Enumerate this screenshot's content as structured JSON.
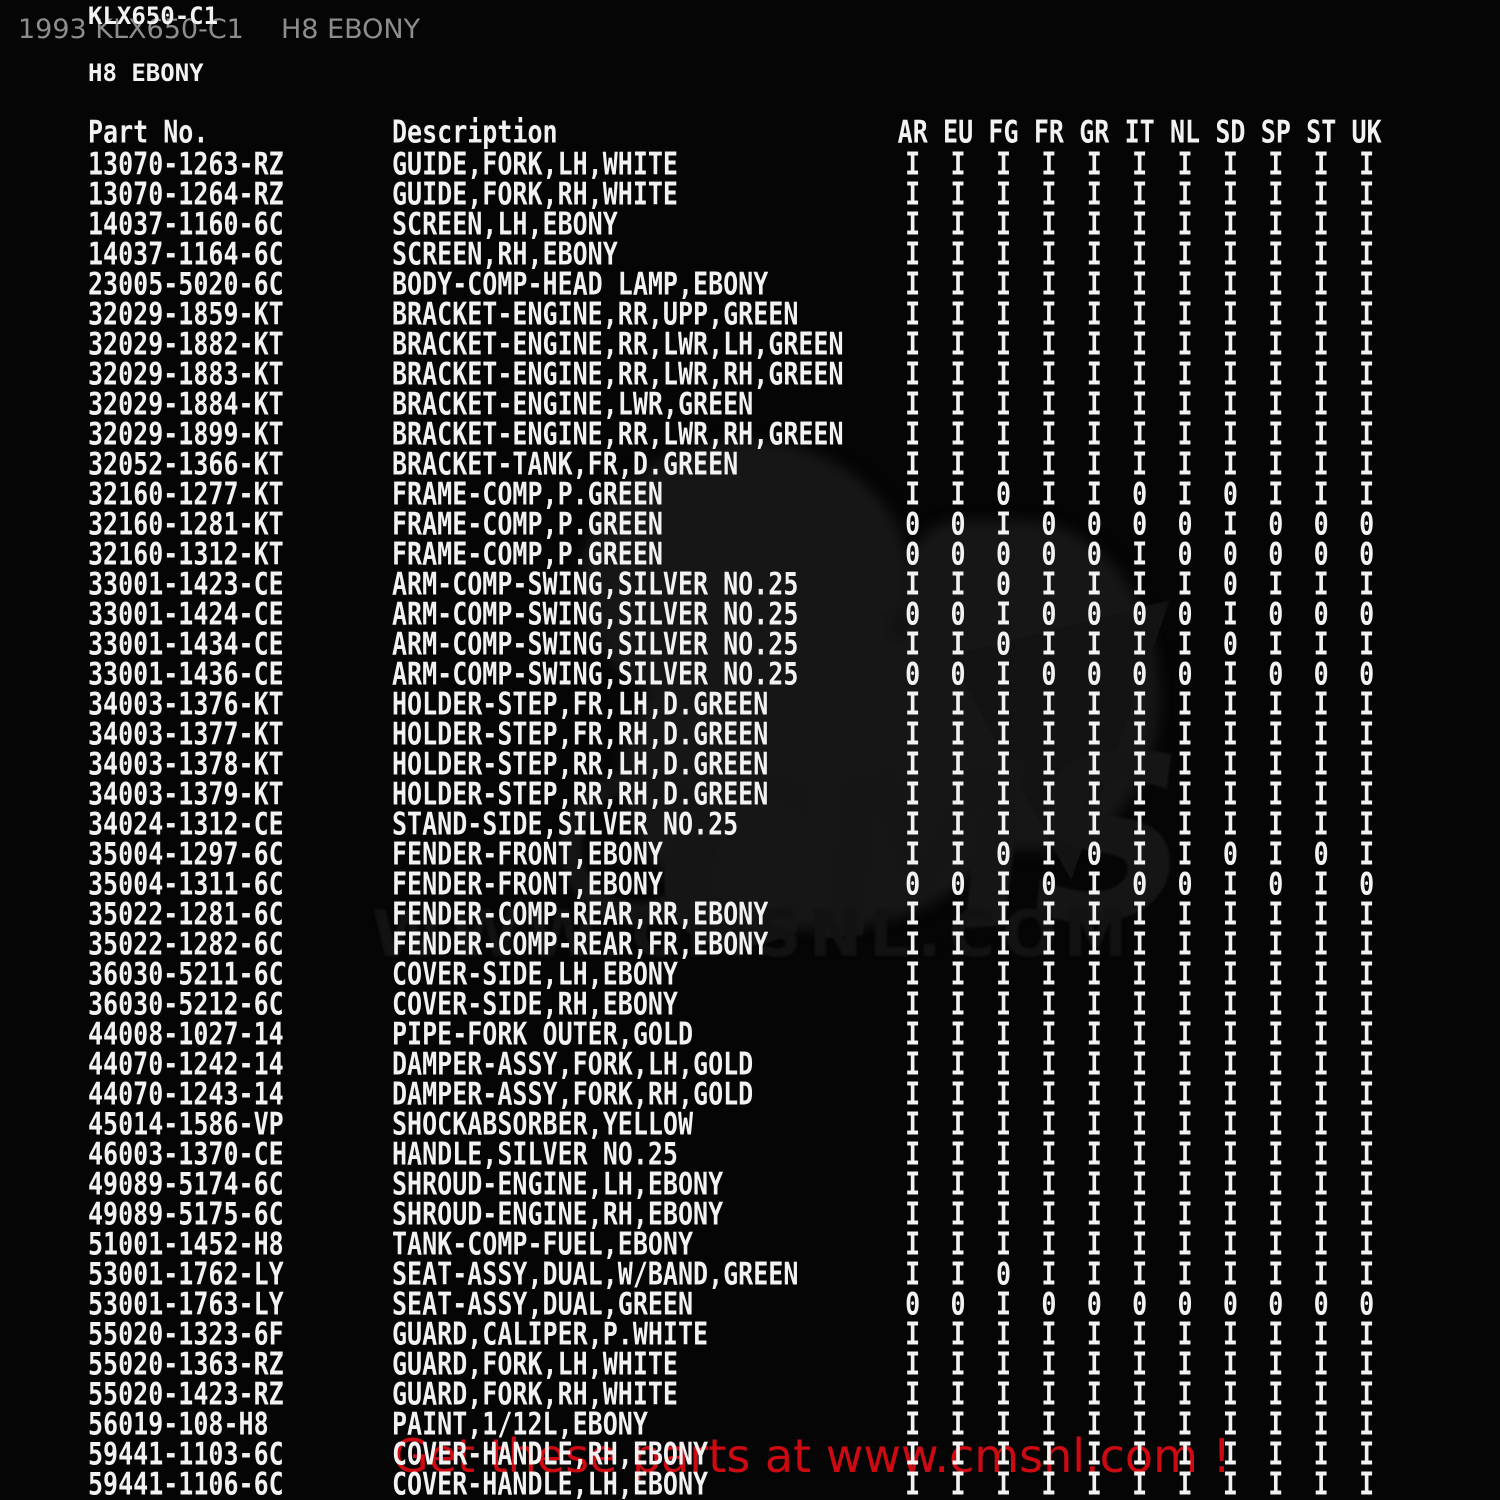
{
  "header": {
    "model_code": "KLX650-C1",
    "color_code": "H8 EBONY"
  },
  "watermarks": {
    "top_left": "1993 KLX650-C1",
    "top_right": "H8 EBONY",
    "logo": "CMS",
    "url": "WWW.CMSNL.COM"
  },
  "footer": {
    "promo": "Get these parts at www.cmsnl.com !"
  },
  "colors": {
    "background": "#050505",
    "text": "#f2f2f2",
    "caption_gray": "#8d8d8d",
    "promo_red": "#cd0a12",
    "watermark_gray": "#151515"
  },
  "table": {
    "columns": [
      "Part No.",
      "Description",
      "AR",
      "EU",
      "FG",
      "FR",
      "GR",
      "IT",
      "NL",
      "SD",
      "SP",
      "ST",
      "UK"
    ],
    "rows": [
      {
        "part": "13070-1263-RZ",
        "desc": "GUIDE,FORK,LH,WHITE",
        "flags": "IIIIIIIIIII"
      },
      {
        "part": "13070-1264-RZ",
        "desc": "GUIDE,FORK,RH,WHITE",
        "flags": "IIIIIIIIIII"
      },
      {
        "part": "14037-1160-6C",
        "desc": "SCREEN,LH,EBONY",
        "flags": "IIIIIIIIIII"
      },
      {
        "part": "14037-1164-6C",
        "desc": "SCREEN,RH,EBONY",
        "flags": "IIIIIIIIIII"
      },
      {
        "part": "23005-5020-6C",
        "desc": "BODY-COMP-HEAD LAMP,EBONY",
        "flags": "IIIIIIIIIII"
      },
      {
        "part": "32029-1859-KT",
        "desc": "BRACKET-ENGINE,RR,UPP,GREEN",
        "flags": "IIIIIIIIIII"
      },
      {
        "part": "32029-1882-KT",
        "desc": "BRACKET-ENGINE,RR,LWR,LH,GREEN",
        "flags": "IIIIIIIIIII"
      },
      {
        "part": "32029-1883-KT",
        "desc": "BRACKET-ENGINE,RR,LWR,RH,GREEN",
        "flags": "IIIIIIIIIII"
      },
      {
        "part": "32029-1884-KT",
        "desc": "BRACKET-ENGINE,LWR,GREEN",
        "flags": "IIIIIIIIIII"
      },
      {
        "part": "32029-1899-KT",
        "desc": "BRACKET-ENGINE,RR,LWR,RH,GREEN",
        "flags": "IIIIIIIIIII"
      },
      {
        "part": "32052-1366-KT",
        "desc": "BRACKET-TANK,FR,D.GREEN",
        "flags": "IIIIIIIIIII"
      },
      {
        "part": "32160-1277-KT",
        "desc": "FRAME-COMP,P.GREEN",
        "flags": "II0II0I0III"
      },
      {
        "part": "32160-1281-KT",
        "desc": "FRAME-COMP,P.GREEN",
        "flags": "00I0000I000"
      },
      {
        "part": "32160-1312-KT",
        "desc": "FRAME-COMP,P.GREEN",
        "flags": "00000I00000"
      },
      {
        "part": "33001-1423-CE",
        "desc": "ARM-COMP-SWING,SILVER NO.25",
        "flags": "II0IIII0III"
      },
      {
        "part": "33001-1424-CE",
        "desc": "ARM-COMP-SWING,SILVER NO.25",
        "flags": "00I0000I000"
      },
      {
        "part": "33001-1434-CE",
        "desc": "ARM-COMP-SWING,SILVER NO.25",
        "flags": "II0IIII0III"
      },
      {
        "part": "33001-1436-CE",
        "desc": "ARM-COMP-SWING,SILVER NO.25",
        "flags": "00I0000I000"
      },
      {
        "part": "34003-1376-KT",
        "desc": "HOLDER-STEP,FR,LH,D.GREEN",
        "flags": "IIIIIIIIIII"
      },
      {
        "part": "34003-1377-KT",
        "desc": "HOLDER-STEP,FR,RH,D.GREEN",
        "flags": "IIIIIIIIIII"
      },
      {
        "part": "34003-1378-KT",
        "desc": "HOLDER-STEP,RR,LH,D.GREEN",
        "flags": "IIIIIIIIIII"
      },
      {
        "part": "34003-1379-KT",
        "desc": "HOLDER-STEP,RR,RH,D.GREEN",
        "flags": "IIIIIIIIIII"
      },
      {
        "part": "34024-1312-CE",
        "desc": "STAND-SIDE,SILVER NO.25",
        "flags": "IIIIIIIIIII"
      },
      {
        "part": "35004-1297-6C",
        "desc": "FENDER-FRONT,EBONY",
        "flags": "II0I0II0I0I"
      },
      {
        "part": "35004-1311-6C",
        "desc": "FENDER-FRONT,EBONY",
        "flags": "00I0I00I0I0"
      },
      {
        "part": "35022-1281-6C",
        "desc": "FENDER-COMP-REAR,RR,EBONY",
        "flags": "IIIIIIIIIII"
      },
      {
        "part": "35022-1282-6C",
        "desc": "FENDER-COMP-REAR,FR,EBONY",
        "flags": "IIIIIIIIIII"
      },
      {
        "part": "36030-5211-6C",
        "desc": "COVER-SIDE,LH,EBONY",
        "flags": "IIIIIIIIIII"
      },
      {
        "part": "36030-5212-6C",
        "desc": "COVER-SIDE,RH,EBONY",
        "flags": "IIIIIIIIIII"
      },
      {
        "part": "44008-1027-14",
        "desc": "PIPE-FORK OUTER,GOLD",
        "flags": "IIIIIIIIIII"
      },
      {
        "part": "44070-1242-14",
        "desc": "DAMPER-ASSY,FORK,LH,GOLD",
        "flags": "IIIIIIIIIII"
      },
      {
        "part": "44070-1243-14",
        "desc": "DAMPER-ASSY,FORK,RH,GOLD",
        "flags": "IIIIIIIIIII"
      },
      {
        "part": "45014-1586-VP",
        "desc": "SHOCKABSORBER,YELLOW",
        "flags": "IIIIIIIIIII"
      },
      {
        "part": "46003-1370-CE",
        "desc": "HANDLE,SILVER NO.25",
        "flags": "IIIIIIIIIII"
      },
      {
        "part": "49089-5174-6C",
        "desc": "SHROUD-ENGINE,LH,EBONY",
        "flags": "IIIIIIIIIII"
      },
      {
        "part": "49089-5175-6C",
        "desc": "SHROUD-ENGINE,RH,EBONY",
        "flags": "IIIIIIIIIII"
      },
      {
        "part": "51001-1452-H8",
        "desc": "TANK-COMP-FUEL,EBONY",
        "flags": "IIIIIIIIIII"
      },
      {
        "part": "53001-1762-LY",
        "desc": "SEAT-ASSY,DUAL,W/BAND,GREEN",
        "flags": "II0IIIIIIII"
      },
      {
        "part": "53001-1763-LY",
        "desc": "SEAT-ASSY,DUAL,GREEN",
        "flags": "00I00000000"
      },
      {
        "part": "55020-1323-6F",
        "desc": "GUARD,CALIPER,P.WHITE",
        "flags": "IIIIIIIIIII"
      },
      {
        "part": "55020-1363-RZ",
        "desc": "GUARD,FORK,LH,WHITE",
        "flags": "IIIIIIIIIII"
      },
      {
        "part": "55020-1423-RZ",
        "desc": "GUARD,FORK,RH,WHITE",
        "flags": "IIIIIIIIIII"
      },
      {
        "part": "56019-108-H8",
        "desc": "PAINT,1/12L,EBONY",
        "flags": "IIIIIIIIIII"
      },
      {
        "part": "59441-1103-6C",
        "desc": "COVER-HANDLE,RH,EBONY",
        "flags": "IIIIIIIIIII"
      },
      {
        "part": "59441-1106-6C",
        "desc": "COVER-HANDLE,LH,EBONY",
        "flags": "IIIIIIIIIII"
      }
    ]
  }
}
